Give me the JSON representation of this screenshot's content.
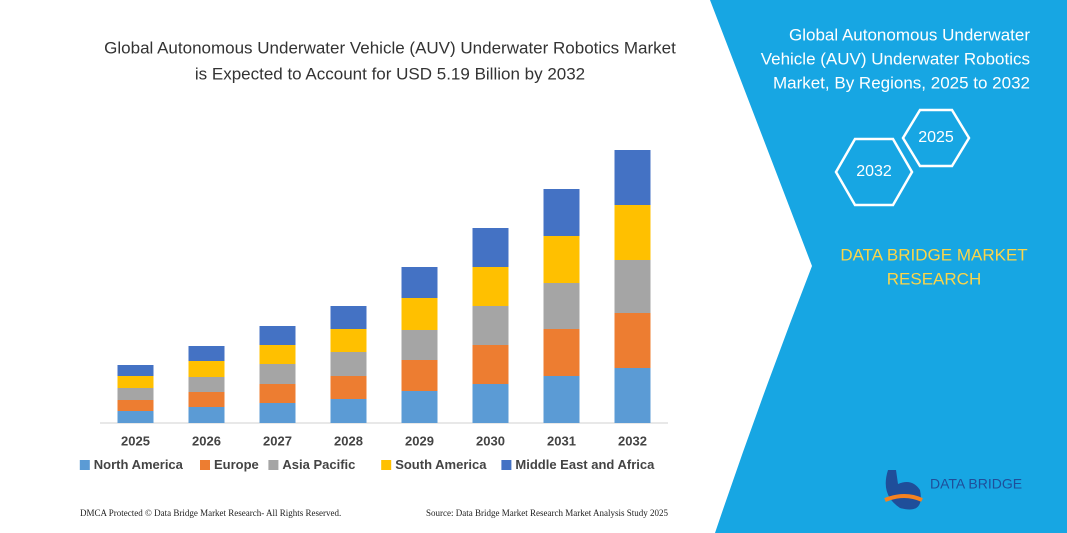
{
  "chart_data": {
    "type": "stacked-bar",
    "title": [
      "Global Autonomous Underwater Vehicle (AUV) Underwater Robotics Market",
      "is Expected to Account for USD 5.19 Billion by 2032"
    ],
    "categories": [
      "2025",
      "2026",
      "2027",
      "2028",
      "2029",
      "2030",
      "2031",
      "2032"
    ],
    "series": [
      {
        "name": "North America",
        "color": "#5b9bd5",
        "values": [
          12,
          16,
          20,
          24,
          32,
          39,
          47,
          55
        ]
      },
      {
        "name": "Europe",
        "color": "#ed7d31",
        "values": [
          11,
          15,
          19,
          23,
          31,
          39,
          47,
          55
        ]
      },
      {
        "name": "Asia Pacific",
        "color": "#a5a5a5",
        "values": [
          12,
          15,
          20,
          24,
          30,
          39,
          46,
          53
        ]
      },
      {
        "name": "South America",
        "color": "#ffc000",
        "values": [
          12,
          16,
          19,
          23,
          32,
          39,
          47,
          55
        ]
      },
      {
        "name": "Middle East and Africa",
        "color": "#4472c4",
        "values": [
          11,
          15,
          19,
          23,
          31,
          39,
          47,
          55
        ]
      }
    ]
  },
  "panel": {
    "title": [
      "Global Autonomous Underwater",
      "Vehicle (AUV) Underwater Robotics",
      "Market, By Regions, 2025 to 2032"
    ],
    "hex_labels": [
      "2025",
      "2032"
    ],
    "brand": [
      "DATA BRIDGE MARKET",
      "RESEARCH"
    ]
  },
  "logo": {
    "text": "DATA BRIDGE"
  },
  "footer": {
    "left": "DMCA Protected © Data Bridge Market Research-  All Rights Reserved.",
    "right": "Source: Data Bridge Market Research  Market Analysis Study 2025"
  }
}
